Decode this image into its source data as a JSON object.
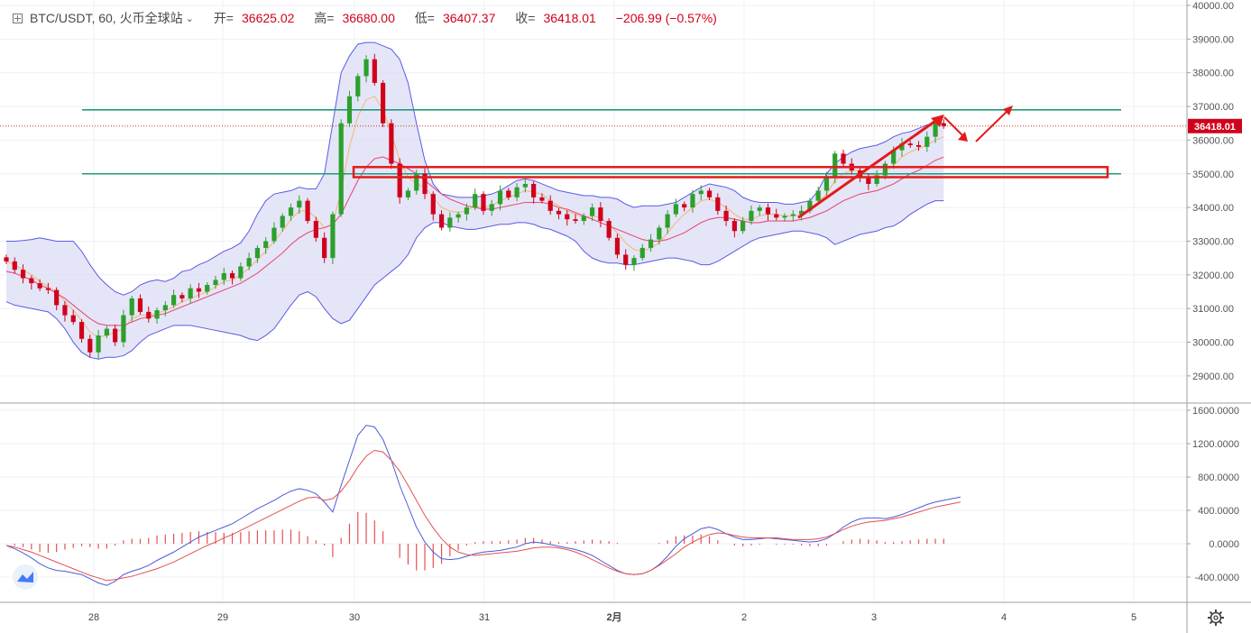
{
  "header": {
    "symbol": "BTC/USDT, 60, 火币全球站",
    "open_label": "开=",
    "open": "36625.02",
    "high_label": "高=",
    "high": "36680.00",
    "low_label": "低=",
    "low": "36407.37",
    "close_label": "收=",
    "close": "36418.01",
    "change": "−206.99 (−0.57%)"
  },
  "icons": {
    "expand": "expand-icon",
    "dropdown": "chevron-down-icon",
    "settings": "gear-icon",
    "logo": "tradingview-logo-icon"
  },
  "colors": {
    "up": "#2ca02c",
    "down": "#d0021b",
    "bollinger_fill": "#dcdcf5",
    "bollinger_band": "#5a5ae6",
    "ma_fast": "#f4b76a",
    "ma_mid": "#e6507a",
    "support_line": "#1f9a7a",
    "annotation": "#e21b1b",
    "macd_line": "#4b5bdc",
    "signal_line": "#e65050"
  },
  "chart_data": [
    {
      "type": "candlestick",
      "panel": "price",
      "x_ticks": [
        "28",
        "29",
        "30",
        "31",
        "2月",
        "2",
        "3",
        "4",
        "5"
      ],
      "y_ticks": [
        "40000.00",
        "39000.00",
        "38000.00",
        "37000.00",
        "36000.00",
        "35000.00",
        "34000.00",
        "33000.00",
        "32000.00",
        "31000.00",
        "30000.00",
        "29000.00"
      ],
      "ylim": [
        28300,
        40000
      ],
      "last_price_label": "36418.01",
      "horizontal_lines": [
        36900,
        35000
      ],
      "annotation_box": [
        34900,
        35200
      ],
      "series": [
        {
          "name": "close",
          "values": [
            32400,
            32150,
            31900,
            31750,
            31600,
            31550,
            31100,
            30800,
            30600,
            30100,
            29700,
            30200,
            30400,
            30000,
            30800,
            31300,
            30900,
            30700,
            30950,
            31100,
            31400,
            31300,
            31600,
            31500,
            31700,
            31850,
            32050,
            31900,
            32250,
            32500,
            32800,
            33000,
            33400,
            33750,
            34000,
            34200,
            33600,
            33100,
            32500,
            33800,
            36500,
            37300,
            37900,
            38400,
            37700,
            36500,
            35300,
            34300,
            34500,
            35000,
            34400,
            33800,
            33400,
            33700,
            33800,
            34000,
            34400,
            33900,
            34100,
            34500,
            34300,
            34600,
            34700,
            34300,
            34200,
            33900,
            33800,
            33650,
            33600,
            33750,
            34000,
            33600,
            33100,
            32600,
            32300,
            32500,
            32800,
            33050,
            33400,
            33800,
            34100,
            34000,
            34400,
            34500,
            34300,
            33900,
            33600,
            33300,
            33600,
            33900,
            34000,
            33800,
            33700,
            33750,
            33800,
            33900,
            34200,
            34500,
            34900,
            35600,
            35300,
            35100,
            34900,
            34700,
            34950,
            35300,
            35700,
            35900,
            35850,
            35800,
            36100,
            36500,
            36418
          ]
        },
        {
          "name": "BB upper",
          "values": [
            33000,
            33000,
            33020,
            33050,
            33100,
            33050,
            33000,
            33000,
            33000,
            32700,
            32300,
            31950,
            31700,
            31500,
            31400,
            31500,
            31700,
            31800,
            31850,
            31800,
            31900,
            32100,
            32150,
            32300,
            32400,
            32550,
            32700,
            32800,
            32950,
            33300,
            33800,
            34200,
            34400,
            34450,
            34500,
            34600,
            34550,
            34550,
            35000,
            36500,
            38000,
            38500,
            38850,
            38900,
            38900,
            38800,
            38700,
            38400,
            37700,
            36500,
            35400,
            34700,
            34400,
            34350,
            34300,
            34300,
            34300,
            34350,
            34400,
            34500,
            34650,
            34800,
            34850,
            34800,
            34700,
            34600,
            34500,
            34450,
            34400,
            34350,
            34350,
            34300,
            34300,
            34250,
            34100,
            34000,
            34050,
            34050,
            34050,
            34100,
            34150,
            34300,
            34450,
            34600,
            34700,
            34650,
            34600,
            34500,
            34300,
            34200,
            34150,
            34150,
            34150,
            34100,
            34100,
            34150,
            34200,
            34500,
            35000,
            35300,
            35500,
            35650,
            35750,
            35800,
            35850,
            35950,
            36100,
            36200,
            36250,
            36350,
            36450,
            36500,
            36500
          ]
        },
        {
          "name": "BB lower",
          "values": [
            31200,
            31100,
            31050,
            31000,
            30950,
            30900,
            30700,
            30400,
            30000,
            29700,
            29550,
            29500,
            29550,
            29550,
            29600,
            29750,
            30000,
            30200,
            30300,
            30400,
            30500,
            30500,
            30500,
            30450,
            30400,
            30350,
            30300,
            30250,
            30200,
            30100,
            30050,
            30200,
            30400,
            30750,
            31100,
            31400,
            31500,
            31350,
            31000,
            30700,
            30550,
            30650,
            31000,
            31350,
            31700,
            31900,
            32100,
            32300,
            32600,
            33100,
            33400,
            33550,
            33550,
            33450,
            33400,
            33350,
            33350,
            33400,
            33450,
            33500,
            33500,
            33550,
            33550,
            33500,
            33400,
            33350,
            33250,
            33150,
            33000,
            32700,
            32500,
            32400,
            32350,
            32350,
            32300,
            32300,
            32350,
            32400,
            32450,
            32500,
            32500,
            32450,
            32400,
            32300,
            32300,
            32400,
            32550,
            32700,
            32850,
            33000,
            33100,
            33150,
            33200,
            33250,
            33300,
            33300,
            33250,
            33200,
            33100,
            32900,
            33000,
            33100,
            33200,
            33250,
            33300,
            33400,
            33450,
            33600,
            33800,
            33950,
            34100,
            34200,
            34200
          ]
        },
        {
          "name": "MA fast",
          "values": [
            32400,
            32300,
            32150,
            32000,
            31800,
            31650,
            31500,
            31200,
            30950,
            30650,
            30300,
            30150,
            30200,
            30300,
            30400,
            30700,
            30800,
            30800,
            30850,
            30950,
            31050,
            31200,
            31300,
            31400,
            31500,
            31650,
            31800,
            31850,
            32000,
            32200,
            32450,
            32700,
            33000,
            33300,
            33650,
            33900,
            33900,
            33700,
            33400,
            33500,
            34500,
            35800,
            36700,
            37200,
            37300,
            36900,
            36200,
            35400,
            34900,
            34700,
            34600,
            34300,
            34000,
            33900,
            33850,
            33900,
            34050,
            34000,
            34050,
            34200,
            34300,
            34400,
            34500,
            34450,
            34400,
            34200,
            34050,
            33900,
            33800,
            33700,
            33750,
            33700,
            33500,
            33250,
            32950,
            32750,
            32700,
            32800,
            32950,
            33250,
            33550,
            33800,
            34000,
            34200,
            34250,
            34150,
            34000,
            33800,
            33650,
            33650,
            33750,
            33800,
            33800,
            33750,
            33750,
            33800,
            33950,
            34150,
            34400,
            34800,
            35000,
            35100,
            35100,
            35000,
            34950,
            35050,
            35250,
            35500,
            35650,
            35750,
            35850,
            36000,
            36100
          ]
        },
        {
          "name": "MA mid",
          "values": [
            32100,
            32050,
            31950,
            31850,
            31700,
            31600,
            31450,
            31300,
            31100,
            30900,
            30700,
            30550,
            30500,
            30500,
            30500,
            30600,
            30700,
            30750,
            30800,
            30850,
            30950,
            31050,
            31150,
            31250,
            31350,
            31450,
            31550,
            31650,
            31750,
            31900,
            32050,
            32250,
            32450,
            32650,
            32900,
            33100,
            33250,
            33350,
            33400,
            33500,
            33800,
            34300,
            34800,
            35200,
            35450,
            35500,
            35400,
            35300,
            35150,
            35000,
            34800,
            34600,
            34400,
            34250,
            34150,
            34050,
            34000,
            33950,
            33950,
            34000,
            34050,
            34100,
            34150,
            34150,
            34150,
            34100,
            34000,
            33950,
            33850,
            33750,
            33650,
            33550,
            33450,
            33350,
            33250,
            33150,
            33050,
            33000,
            33000,
            33050,
            33150,
            33250,
            33400,
            33550,
            33650,
            33700,
            33700,
            33650,
            33600,
            33550,
            33550,
            33600,
            33600,
            33600,
            33600,
            33650,
            33700,
            33800,
            33900,
            34050,
            34200,
            34300,
            34400,
            34450,
            34500,
            34600,
            34700,
            34850,
            35000,
            35100,
            35250,
            35400,
            35500
          ]
        }
      ]
    },
    {
      "type": "line",
      "panel": "MACD",
      "y_ticks": [
        "1600.0000",
        "1200.0000",
        "800.0000",
        "400.0000",
        "0.0000",
        "-400.0000"
      ],
      "ylim": [
        -700,
        1650
      ],
      "series": [
        {
          "name": "MACD",
          "values": [
            -20,
            -60,
            -110,
            -170,
            -240,
            -290,
            -320,
            -330,
            -350,
            -370,
            -420,
            -470,
            -500,
            -450,
            -370,
            -330,
            -300,
            -260,
            -200,
            -150,
            -100,
            -40,
            20,
            80,
            120,
            160,
            200,
            240,
            300,
            360,
            420,
            470,
            520,
            580,
            630,
            660,
            640,
            600,
            500,
            380,
            700,
            1000,
            1300,
            1420,
            1400,
            1250,
            1000,
            700,
            450,
            200,
            20,
            -100,
            -180,
            -190,
            -180,
            -150,
            -120,
            -100,
            -90,
            -80,
            -60,
            -40,
            0,
            20,
            10,
            -10,
            -30,
            -50,
            -70,
            -100,
            -140,
            -200,
            -260,
            -320,
            -360,
            -370,
            -360,
            -320,
            -250,
            -150,
            -30,
            60,
            120,
            180,
            200,
            170,
            120,
            80,
            50,
            50,
            60,
            70,
            60,
            50,
            40,
            30,
            20,
            30,
            60,
            120,
            200,
            260,
            300,
            310,
            310,
            300,
            320,
            350,
            390,
            430,
            470,
            500,
            520,
            540,
            560
          ]
        },
        {
          "name": "Signal",
          "values": [
            -20,
            -40,
            -70,
            -100,
            -140,
            -180,
            -220,
            -260,
            -300,
            -340,
            -380,
            -410,
            -440,
            -430,
            -410,
            -390,
            -360,
            -330,
            -300,
            -260,
            -220,
            -170,
            -120,
            -70,
            -20,
            20,
            70,
            110,
            160,
            210,
            260,
            310,
            360,
            410,
            460,
            510,
            550,
            560,
            520,
            540,
            630,
            760,
            920,
            1050,
            1120,
            1100,
            1000,
            870,
            700,
            520,
            340,
            190,
            60,
            -40,
            -100,
            -130,
            -140,
            -130,
            -120,
            -110,
            -100,
            -90,
            -70,
            -50,
            -40,
            -40,
            -50,
            -70,
            -100,
            -140,
            -190,
            -240,
            -290,
            -330,
            -360,
            -370,
            -360,
            -320,
            -260,
            -190,
            -120,
            -40,
            20,
            70,
            110,
            130,
            120,
            100,
            80,
            70,
            70,
            70,
            70,
            60,
            50,
            50,
            50,
            60,
            80,
            120,
            170,
            210,
            240,
            260,
            270,
            280,
            300,
            320,
            350,
            380,
            410,
            440,
            460,
            480,
            500
          ]
        }
      ]
    }
  ]
}
